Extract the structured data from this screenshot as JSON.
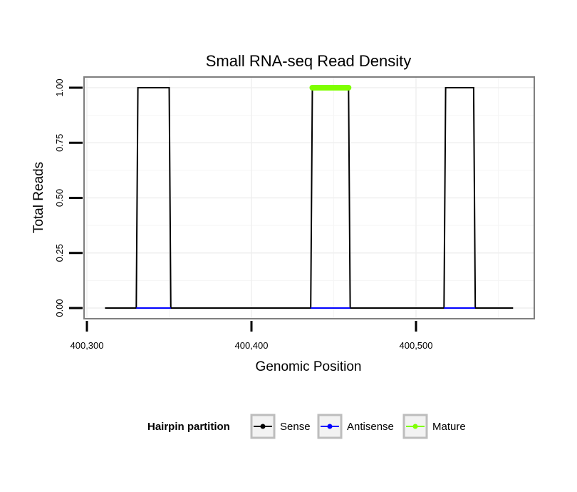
{
  "chart_data": {
    "type": "line",
    "title": "Small RNA-seq Read Density",
    "xlabel": "Genomic Position",
    "ylabel": "Total Reads",
    "xlim": [
      400300,
      400570
    ],
    "ylim": [
      0,
      1
    ],
    "x_ticks": [
      400300,
      400400,
      400500
    ],
    "x_tick_labels": [
      "400,300",
      "400,400",
      "400,500"
    ],
    "y_ticks": [
      0,
      0.25,
      0.5,
      0.75,
      1
    ],
    "y_tick_labels": [
      "0.00",
      "0.25",
      "0.50",
      "0.75",
      "1.00"
    ],
    "grid": true,
    "legend": {
      "title": "Hairpin partition",
      "position": "bottom",
      "entries": [
        {
          "label": "Sense",
          "color": "#000000"
        },
        {
          "label": "Antisense",
          "color": "#0000ff"
        },
        {
          "label": "Mature",
          "color": "#7fff00"
        }
      ]
    },
    "series": [
      {
        "name": "Sense",
        "color": "#000000",
        "x": [
          400311,
          400330,
          400331,
          400350,
          400351,
          400436,
          400437,
          400459,
          400460,
          400517,
          400518,
          400535,
          400536,
          400559
        ],
        "y": [
          0,
          0,
          1,
          1,
          0,
          0,
          1,
          1,
          0,
          0,
          1,
          1,
          0,
          0
        ]
      },
      {
        "name": "Antisense",
        "color": "#0000ff",
        "segments": [
          [
            400330,
            400351
          ],
          [
            400436,
            400460
          ],
          [
            400517,
            400536
          ]
        ],
        "y": 0
      },
      {
        "name": "Mature",
        "color": "#7fff00",
        "segments": [
          [
            400437,
            400459
          ]
        ],
        "y": 1
      }
    ]
  }
}
